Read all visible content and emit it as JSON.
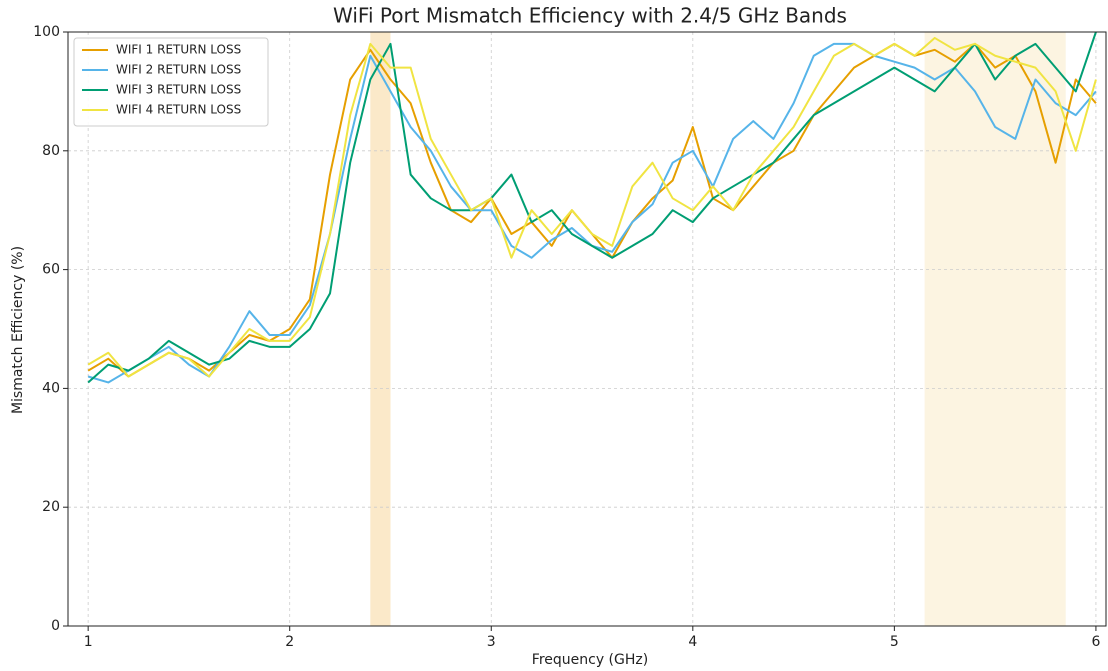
{
  "chart_data": {
    "type": "line",
    "title": "WiFi Port Mismatch Efficiency with 2.4/5 GHz Bands",
    "xlabel": "Frequency (GHz)",
    "ylabel": "Mismatch Efficiency (%)",
    "x": [
      1.0,
      1.1,
      1.2,
      1.3,
      1.4,
      1.5,
      1.6,
      1.7,
      1.8,
      1.9,
      2.0,
      2.1,
      2.2,
      2.3,
      2.4,
      2.5,
      2.6,
      2.7,
      2.8,
      2.9,
      3.0,
      3.1,
      3.2,
      3.3,
      3.4,
      3.5,
      3.6,
      3.7,
      3.8,
      3.9,
      4.0,
      4.1,
      4.2,
      4.3,
      4.4,
      4.5,
      4.6,
      4.7,
      4.8,
      4.9,
      5.0,
      5.1,
      5.2,
      5.3,
      5.4,
      5.5,
      5.6,
      5.7,
      5.8,
      5.9,
      6.0
    ],
    "series": [
      {
        "name": "WIFI 1 RETURN LOSS",
        "color": "#E69F00",
        "values": [
          43,
          45,
          42,
          44,
          46,
          45,
          43,
          46,
          49,
          48,
          50,
          55,
          76,
          92,
          97,
          92,
          88,
          78,
          70,
          68,
          72,
          66,
          68,
          64,
          70,
          66,
          62,
          68,
          72,
          75,
          84,
          72,
          70,
          74,
          78,
          80,
          86,
          90,
          94,
          96,
          98,
          96,
          97,
          95,
          98,
          94,
          96,
          90,
          78,
          92,
          88
        ]
      },
      {
        "name": "WIFI 2 RETURN LOSS",
        "color": "#56B4E9",
        "values": [
          42,
          41,
          43,
          45,
          47,
          44,
          42,
          47,
          53,
          49,
          49,
          54,
          66,
          82,
          96,
          90,
          84,
          80,
          74,
          70,
          70,
          64,
          62,
          65,
          67,
          64,
          63,
          68,
          71,
          78,
          80,
          74,
          82,
          85,
          82,
          88,
          96,
          98,
          98,
          96,
          95,
          94,
          92,
          94,
          90,
          84,
          82,
          92,
          88,
          86,
          90
        ]
      },
      {
        "name": "WIFI 3 RETURN LOSS",
        "color": "#009E73",
        "values": [
          41,
          44,
          43,
          45,
          48,
          46,
          44,
          45,
          48,
          47,
          47,
          50,
          56,
          78,
          92,
          98,
          76,
          72,
          70,
          70,
          72,
          76,
          68,
          70,
          66,
          64,
          62,
          64,
          66,
          70,
          68,
          72,
          74,
          76,
          78,
          82,
          86,
          88,
          90,
          92,
          94,
          92,
          90,
          94,
          98,
          92,
          96,
          98,
          94,
          90,
          100
        ]
      },
      {
        "name": "WIFI 4 RETURN LOSS",
        "color": "#F0E442",
        "values": [
          44,
          46,
          42,
          44,
          46,
          45,
          42,
          46,
          50,
          48,
          48,
          52,
          66,
          86,
          98,
          94,
          94,
          82,
          76,
          70,
          72,
          62,
          70,
          66,
          70,
          66,
          64,
          74,
          78,
          72,
          70,
          74,
          70,
          76,
          80,
          84,
          90,
          96,
          98,
          96,
          98,
          96,
          99,
          97,
          98,
          96,
          95,
          94,
          90,
          80,
          92
        ]
      }
    ],
    "shaded_regions": [
      {
        "xlim": [
          2.4,
          2.5
        ],
        "color": "#F5C878",
        "opacity": 0.4
      },
      {
        "xlim": [
          5.15,
          5.85
        ],
        "color": "#F5DFA8",
        "opacity": 0.35
      }
    ],
    "xlim": [
      0.9,
      6.05
    ],
    "xticks": [
      1,
      2,
      3,
      4,
      5,
      6
    ],
    "ylim": [
      0,
      100
    ],
    "yticks": [
      0,
      20,
      40,
      60,
      80,
      100
    ],
    "grid": true,
    "legend": "upper left"
  }
}
